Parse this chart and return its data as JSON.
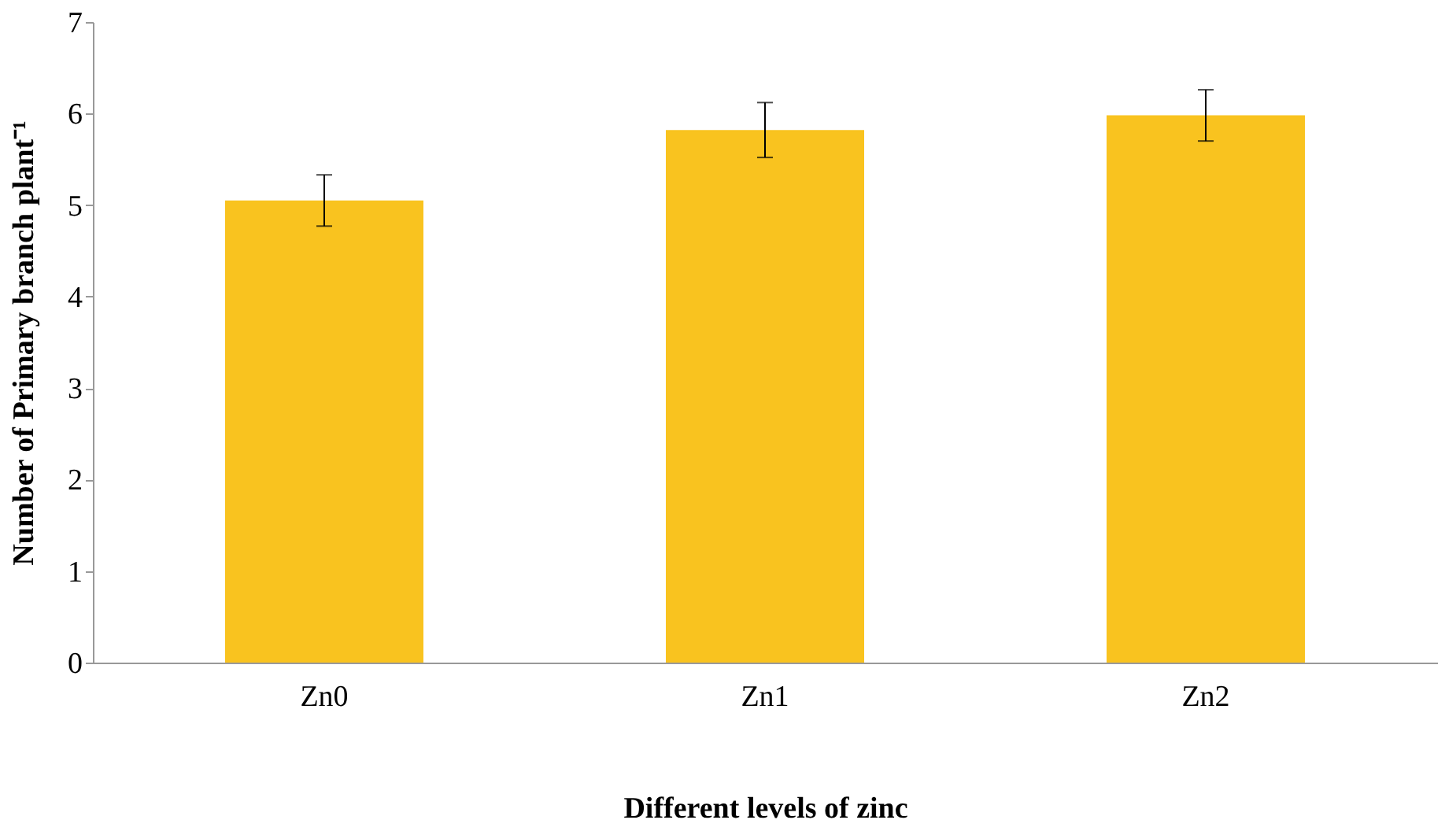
{
  "chart_data": {
    "type": "bar",
    "categories": [
      "Zn0",
      "Zn1",
      "Zn2"
    ],
    "values": [
      5.05,
      5.82,
      5.98
    ],
    "errors": [
      0.28,
      0.3,
      0.28
    ],
    "color": "#f9c31f",
    "xlabel": "Different levels of zinc",
    "ylabel": "Number of Primary branch plant⁻¹",
    "ylim": [
      0,
      7
    ],
    "yticks": [
      0,
      1,
      2,
      3,
      4,
      5,
      6,
      7
    ],
    "grid": false
  }
}
